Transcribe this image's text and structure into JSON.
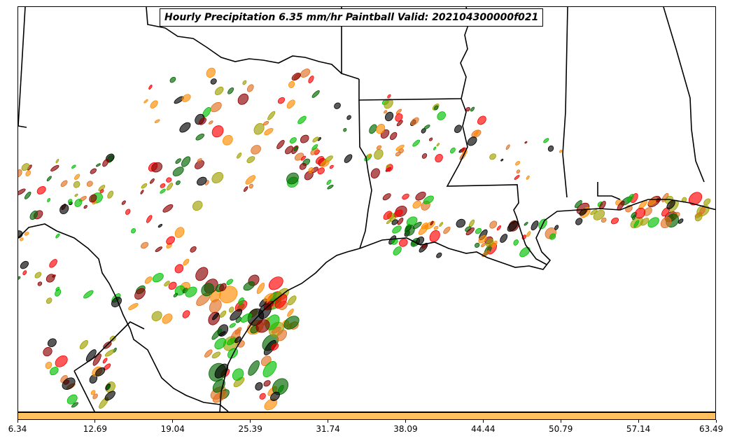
{
  "title": "Hourly Precipitation 6.35 mm/hr Paintball Valid: 202104300000f021",
  "colorbar": {
    "color": "#ffc060",
    "ticks": [
      "6.34",
      "12.69",
      "19.04",
      "25.39",
      "31.74",
      "38.09",
      "44.44",
      "50.79",
      "57.14",
      "63.49"
    ]
  },
  "member_colors": [
    "#ff0000",
    "#ff8c00",
    "#00c000",
    "#006400",
    "#a0a000",
    "#8b0000",
    "#000000",
    "#e07020"
  ]
}
